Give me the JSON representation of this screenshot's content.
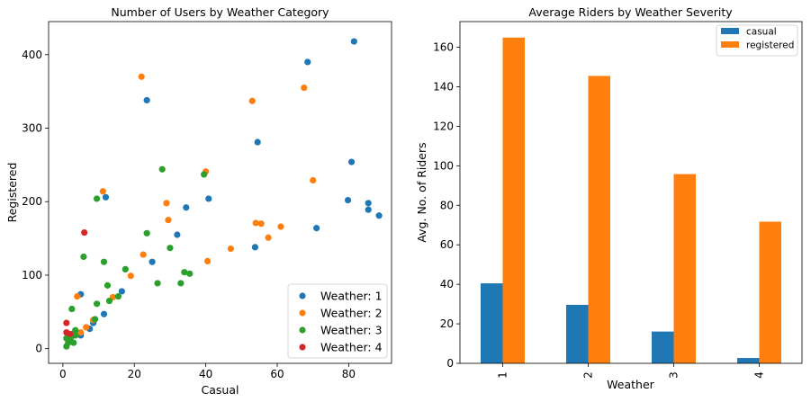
{
  "chart_data": [
    {
      "type": "scatter",
      "title": "Number of Users by Weather Category",
      "xlabel": "Casual",
      "ylabel": "Registered",
      "xlim": [
        -4,
        92
      ],
      "ylim": [
        -20,
        445
      ],
      "xticks": [
        0,
        20,
        40,
        60,
        80
      ],
      "yticks": [
        0,
        100,
        200,
        300,
        400
      ],
      "legend_position": "lower-right",
      "series": [
        {
          "name": "Weather: 1",
          "color": "#1f77b4",
          "points": [
            [
              81.5,
              418
            ],
            [
              68.5,
              390
            ],
            [
              23.5,
              338
            ],
            [
              54.5,
              281
            ],
            [
              80.8,
              254
            ],
            [
              40.8,
              204
            ],
            [
              12,
              206
            ],
            [
              79.8,
              202
            ],
            [
              85.5,
              198
            ],
            [
              85.5,
              189
            ],
            [
              88.5,
              181
            ],
            [
              71,
              164
            ],
            [
              34.5,
              192
            ],
            [
              32,
              155
            ],
            [
              25,
              118
            ],
            [
              53.8,
              138
            ],
            [
              16.5,
              78
            ],
            [
              11.5,
              47
            ],
            [
              7.5,
              27
            ],
            [
              5,
              74
            ],
            [
              5,
              18
            ],
            [
              8.5,
              35
            ],
            [
              3,
              20
            ],
            [
              2,
              12
            ]
          ]
        },
        {
          "name": "Weather: 2",
          "color": "#ff7f0e",
          "points": [
            [
              22,
              370
            ],
            [
              67.5,
              355
            ],
            [
              53,
              337
            ],
            [
              70,
              229
            ],
            [
              40,
              241
            ],
            [
              11.2,
              214
            ],
            [
              29,
              198
            ],
            [
              29.5,
              175
            ],
            [
              54,
              171
            ],
            [
              55.5,
              170
            ],
            [
              61,
              166
            ],
            [
              57.5,
              151
            ],
            [
              22.5,
              128
            ],
            [
              47,
              136
            ],
            [
              40.5,
              119
            ],
            [
              19,
              99
            ],
            [
              14,
              70
            ],
            [
              4,
              71
            ],
            [
              6.5,
              29
            ],
            [
              5,
              22
            ],
            [
              8.5,
              39
            ]
          ]
        },
        {
          "name": "Weather: 3",
          "color": "#2ca02c",
          "points": [
            [
              27.8,
              244
            ],
            [
              39.5,
              237
            ],
            [
              9.5,
              204
            ],
            [
              23.5,
              157
            ],
            [
              30,
              137
            ],
            [
              5.8,
              125
            ],
            [
              11.5,
              118
            ],
            [
              17.5,
              108
            ],
            [
              34,
              104
            ],
            [
              35.5,
              102
            ],
            [
              12.5,
              86
            ],
            [
              26.5,
              89
            ],
            [
              33,
              89
            ],
            [
              9.5,
              61
            ],
            [
              13,
              65
            ],
            [
              15.5,
              71
            ],
            [
              2.5,
              54
            ],
            [
              9,
              40
            ],
            [
              3.5,
              25
            ],
            [
              2,
              13
            ],
            [
              2.5,
              17
            ],
            [
              1,
              14
            ],
            [
              1.5,
              8
            ],
            [
              1,
              3
            ],
            [
              3,
              8
            ],
            [
              3.5,
              18
            ]
          ]
        },
        {
          "name": "Weather: 4",
          "color": "#d62728",
          "points": [
            [
              6,
              158
            ],
            [
              1,
              35
            ],
            [
              1,
              22
            ],
            [
              2,
              20
            ]
          ]
        }
      ]
    },
    {
      "type": "bar",
      "title": "Average Riders by Weather Severity",
      "xlabel": "Weather",
      "ylabel": "Avg. No. of Riders",
      "categories": [
        "1",
        "2",
        "3",
        "4"
      ],
      "ylim": [
        0,
        173
      ],
      "yticks": [
        0,
        20,
        40,
        60,
        80,
        100,
        120,
        140,
        160
      ],
      "legend_position": "top-right",
      "series": [
        {
          "name": "casual",
          "color": "#1f77b4",
          "values": [
            40.5,
            29.6,
            16.1,
            2.7
          ]
        },
        {
          "name": "registered",
          "color": "#ff7f0e",
          "values": [
            164.9,
            145.5,
            95.8,
            71.7
          ]
        }
      ]
    }
  ]
}
